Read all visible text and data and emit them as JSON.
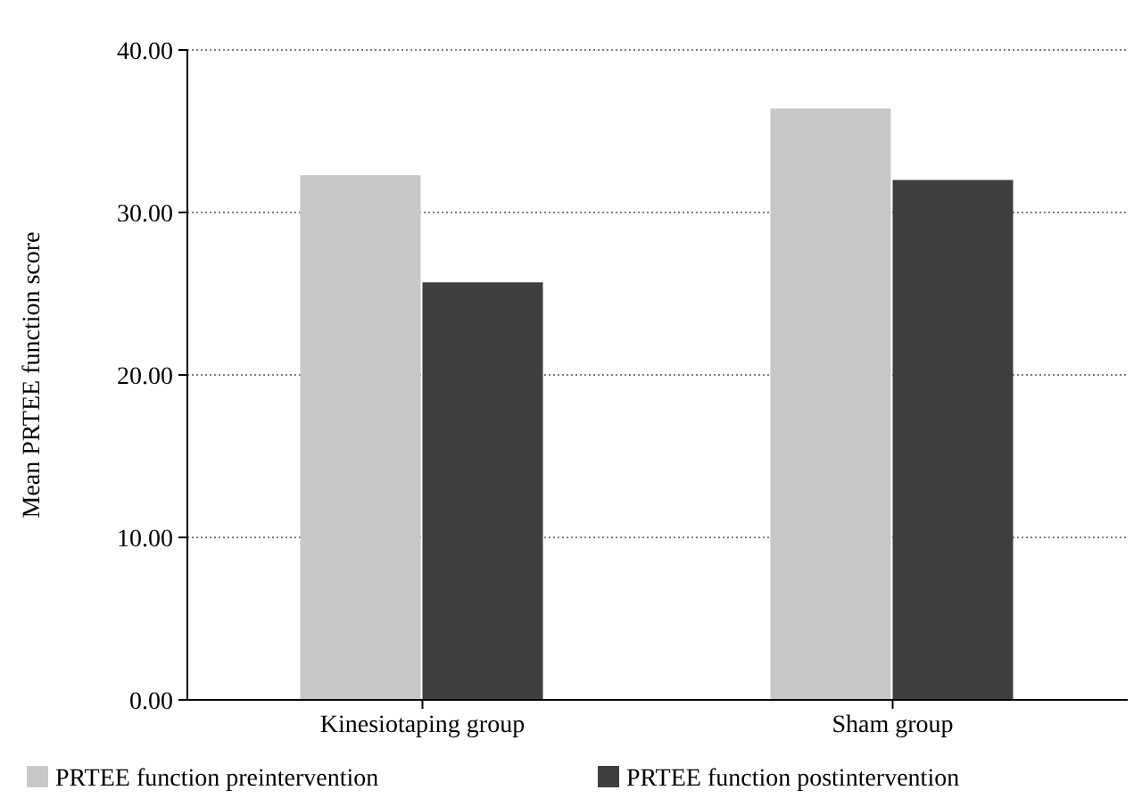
{
  "chart_data": {
    "type": "bar",
    "ylabel": "Mean PRTEE function score",
    "categories": [
      "Kinesiotaping group",
      "Sham group"
    ],
    "series": [
      {
        "name": "PRTEE function preintervention",
        "color": "#c8c8c8",
        "values": [
          32.3,
          36.4
        ]
      },
      {
        "name": "PRTEE function postintervention",
        "color": "#3f3f3f",
        "values": [
          25.7,
          32.0
        ]
      }
    ],
    "ylim": [
      0,
      40
    ],
    "yticks": [
      {
        "value": 0,
        "label": "0.00"
      },
      {
        "value": 10,
        "label": "10.00"
      },
      {
        "value": 20,
        "label": "20.00"
      },
      {
        "value": 30,
        "label": "30.00"
      },
      {
        "value": 40,
        "label": "40.00"
      }
    ],
    "grid": "y",
    "legend": "bottom"
  }
}
